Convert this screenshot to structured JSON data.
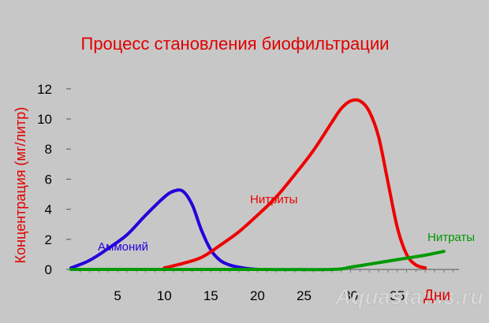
{
  "chart_data": {
    "type": "line",
    "title": "Процесс становления биофильтрации",
    "ylabel": "Концентрация (мг/литр)",
    "xlabel": "Дни",
    "xlim": [
      0,
      39
    ],
    "ylim": [
      0,
      12
    ],
    "x_ticks": [
      5,
      10,
      15,
      20,
      25,
      30,
      35
    ],
    "y_ticks": [
      0,
      2,
      4,
      6,
      8,
      10,
      12
    ],
    "grid": false,
    "series": [
      {
        "name": "Аммоний",
        "color": "#2200dd",
        "x": [
          0,
          2,
          4,
          6,
          8,
          10,
          11,
          12,
          13,
          14,
          15,
          16,
          17,
          18,
          19,
          20
        ],
        "y": [
          0.1,
          0.6,
          1.4,
          2.3,
          3.6,
          4.8,
          5.2,
          5.2,
          4.3,
          2.6,
          1.3,
          0.6,
          0.3,
          0.15,
          0.05,
          0
        ]
      },
      {
        "name": "Нитриты",
        "color": "#ee0000",
        "x": [
          10,
          12,
          14,
          16,
          18,
          20,
          22,
          24,
          26,
          28,
          29,
          30,
          31,
          32,
          33,
          34,
          35,
          36,
          37,
          38
        ],
        "y": [
          0.1,
          0.4,
          0.8,
          1.6,
          2.5,
          3.6,
          4.8,
          6.3,
          7.9,
          9.8,
          10.7,
          11.2,
          11.2,
          10.5,
          8.8,
          5.8,
          2.8,
          1.0,
          0.3,
          0.1
        ]
      },
      {
        "name": "Нитраты",
        "color": "#009900",
        "x": [
          0,
          10,
          20,
          28,
          30,
          32,
          34,
          36,
          38,
          40
        ],
        "y": [
          0,
          0,
          0,
          0,
          0.15,
          0.35,
          0.55,
          0.75,
          0.95,
          1.2
        ]
      }
    ]
  },
  "watermark": "Aquastatus.ru"
}
